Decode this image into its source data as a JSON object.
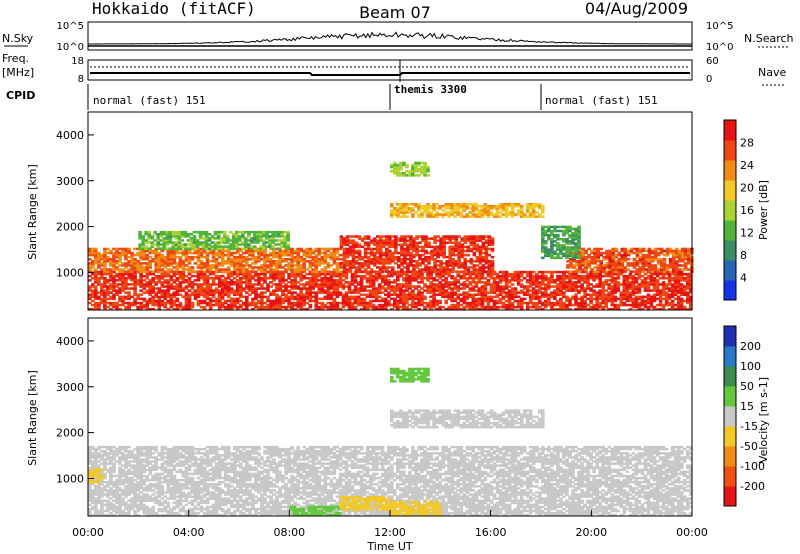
{
  "header": {
    "radar": "Hokkaido (fitACF)",
    "beam": "Beam 07",
    "date": "04/Aug/2009"
  },
  "strip": {
    "nsky_label": "N.Sky",
    "nsky_ticks": [
      "10^5",
      "10^0"
    ],
    "nsearch_label": "N.Search",
    "nsearch_ticks": [
      "10^5",
      "10^0"
    ],
    "freq_label": "Freq.",
    "freq_unit": "[MHz]",
    "freq_ticks": [
      "18",
      "8"
    ],
    "nave_label": "Nave",
    "nave_ticks": [
      "60",
      "0"
    ],
    "cpid_label": "CPID",
    "cpid_segments": [
      {
        "label": "normal (fast) 151",
        "start": 0
      },
      {
        "label": "themis 3300",
        "start": 12
      },
      {
        "label": "normal (fast) 151",
        "start": 18
      }
    ]
  },
  "colors": {
    "power": [
      "#1432e6",
      "#2864b4",
      "#3c8c64",
      "#50b43c",
      "#aad232",
      "#f0c828",
      "#f08c14",
      "#f04614",
      "#e61414"
    ],
    "velocity": [
      "#1e32b4",
      "#2878c8",
      "#3c8c50",
      "#64c83c",
      "#c8c8c8",
      "#f0c828",
      "#f08c14",
      "#f05014",
      "#e61414"
    ]
  },
  "chart_data": [
    {
      "type": "heatmap",
      "panel": "power",
      "ylabel": "Slant Range [km]",
      "yticks": [
        1000,
        2000,
        3000,
        4000
      ],
      "ylim": [
        180,
        4500
      ],
      "xlim": [
        0,
        24
      ],
      "colorbar_label": "Power [dB]",
      "colorbar_ticks": [
        4,
        8,
        12,
        16,
        20,
        24,
        28
      ],
      "colorbar_range": [
        0,
        30
      ],
      "echo_regions": [
        {
          "t0": 0,
          "t1": 24,
          "r0": 180,
          "r1": 1000,
          "level": 28
        },
        {
          "t0": 0,
          "t1": 10,
          "r0": 1000,
          "r1": 1500,
          "level": 24
        },
        {
          "t0": 10,
          "t1": 16,
          "r0": 1000,
          "r1": 1800,
          "level": 28
        },
        {
          "t0": 19,
          "t1": 24,
          "r0": 1000,
          "r1": 1500,
          "level": 26
        },
        {
          "t0": 2,
          "t1": 8,
          "r0": 1500,
          "r1": 1900,
          "level": 12
        },
        {
          "t0": 12,
          "t1": 18,
          "r0": 2200,
          "r1": 2500,
          "level": 20
        },
        {
          "t0": 12,
          "t1": 13.5,
          "r0": 3100,
          "r1": 3400,
          "level": 14
        },
        {
          "t0": 18,
          "t1": 19.5,
          "r0": 1300,
          "r1": 2000,
          "level": 10
        }
      ]
    },
    {
      "type": "heatmap",
      "panel": "velocity",
      "ylabel": "Slant Range [km]",
      "xlabel": "Time UT",
      "yticks": [
        1000,
        2000,
        3000,
        4000
      ],
      "ylim": [
        180,
        4500
      ],
      "xlim": [
        0,
        24
      ],
      "xticks": [
        "00:00",
        "04:00",
        "08:00",
        "12:00",
        "16:00",
        "20:00",
        "00:00"
      ],
      "colorbar_label": "Velocity [m s-1]",
      "colorbar_ticks": [
        "200",
        "100",
        "50",
        "15",
        "-15",
        "-50",
        "-100",
        "-200"
      ],
      "echo_regions": [
        {
          "t0": 0,
          "t1": 24,
          "r0": 180,
          "r1": 1700,
          "level": 0
        },
        {
          "t0": 8,
          "t1": 10,
          "r0": 180,
          "r1": 400,
          "level": 40
        },
        {
          "t0": 10,
          "t1": 12,
          "r0": 300,
          "r1": 600,
          "level": -20
        },
        {
          "t0": 12,
          "t1": 14,
          "r0": 200,
          "r1": 500,
          "level": -30
        },
        {
          "t0": 0,
          "t1": 0.5,
          "r0": 900,
          "r1": 1200,
          "level": -40
        },
        {
          "t0": 12,
          "t1": 18,
          "r0": 2100,
          "r1": 2500,
          "level": 0
        },
        {
          "t0": 12,
          "t1": 13.5,
          "r0": 3100,
          "r1": 3400,
          "level": 20
        }
      ]
    }
  ]
}
